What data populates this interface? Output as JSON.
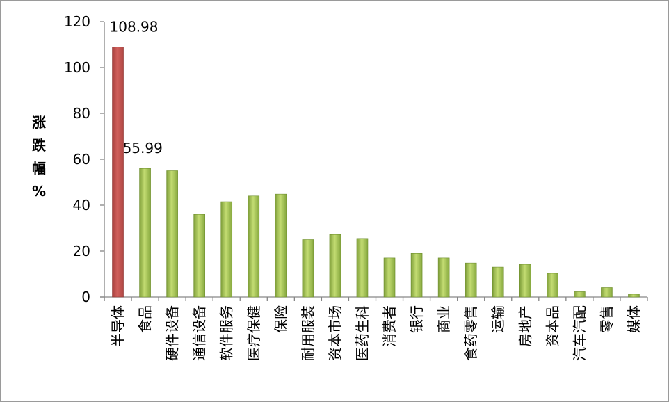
{
  "chart_data": {
    "type": "bar",
    "title": "",
    "xlabel": "",
    "ylabel": "涨跌幅%",
    "ylabel_chars": [
      "涨",
      "跌",
      "幅",
      "%"
    ],
    "ylim": [
      0,
      120
    ],
    "yticks": [
      0,
      20,
      40,
      60,
      80,
      100,
      120
    ],
    "grid": false,
    "categories": [
      "半导体",
      "食品",
      "硬件设备",
      "通信设备",
      "软件服务",
      "医疗保健",
      "保险",
      "耐用服装",
      "资本市场",
      "医药生科",
      "消费者",
      "银行",
      "商业",
      "食药零售",
      "运输",
      "房地产",
      "资本品",
      "汽车汽配",
      "零售",
      "媒体"
    ],
    "values": [
      108.98,
      55.99,
      55,
      36,
      41.5,
      44,
      44.8,
      25,
      27.2,
      25.5,
      17,
      19,
      17,
      14.8,
      13,
      14.2,
      10.3,
      2.3,
      4.1,
      1.2
    ],
    "data_labels": [
      {
        "category": "半导体",
        "text": "108.98"
      },
      {
        "category": "食品",
        "text": "55.99"
      }
    ],
    "colors": {
      "highlight": "#c0504d",
      "highlight_dark": "#8c3735",
      "bar_light": "#c3dc72",
      "bar_mid": "#9bbb59",
      "bar_dark": "#6f8f2e",
      "axis": "#868686"
    }
  }
}
